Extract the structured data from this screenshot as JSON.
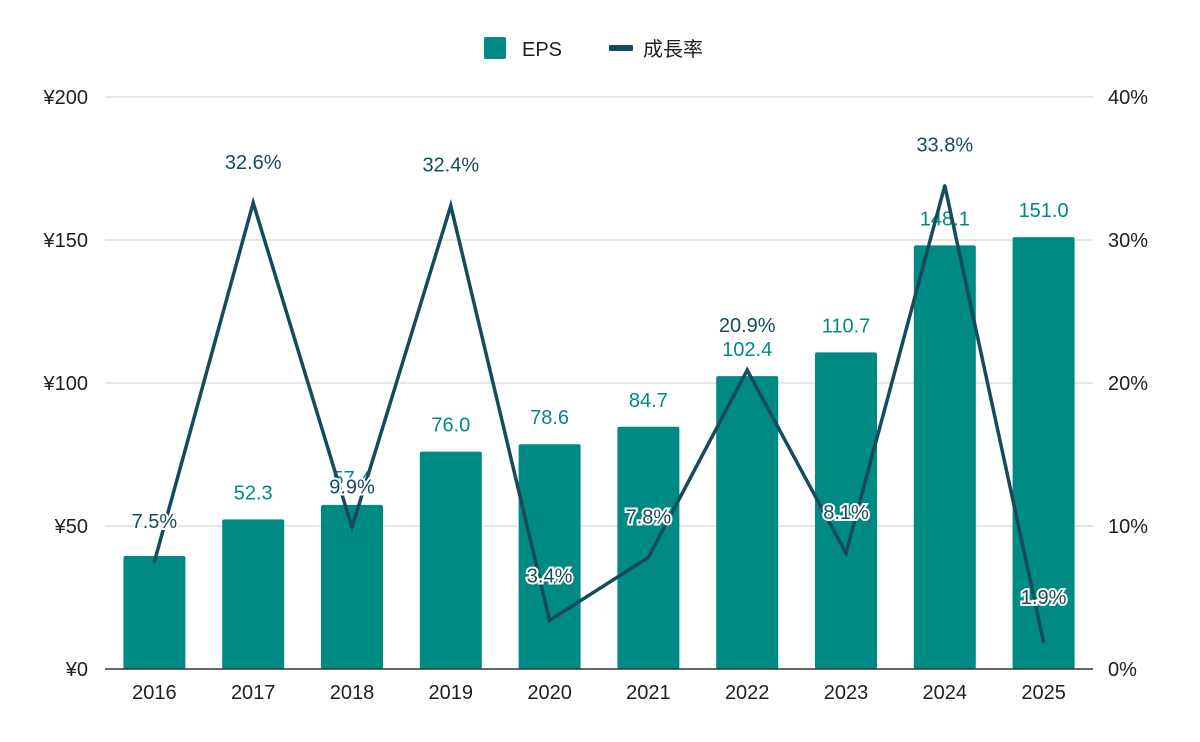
{
  "chart_data": {
    "type": "bar",
    "categories": [
      "2016",
      "2017",
      "2018",
      "2019",
      "2020",
      "2021",
      "2022",
      "2023",
      "2024",
      "2025"
    ],
    "series": [
      {
        "name": "EPS",
        "type": "bar",
        "axis": "left",
        "color": "#008a84",
        "values": [
          39.5,
          52.3,
          57.4,
          76.0,
          78.6,
          84.7,
          102.4,
          110.7,
          148.1,
          151.0
        ],
        "labels": [
          "",
          "52.3",
          "57.4",
          "76.0",
          "78.6",
          "84.7",
          "102.4",
          "110.7",
          "148.1",
          "151.0"
        ]
      },
      {
        "name": "成長率",
        "type": "line",
        "axis": "right",
        "color": "#174b5b",
        "values": [
          7.5,
          32.6,
          9.9,
          32.4,
          3.4,
          7.8,
          20.9,
          8.1,
          33.8,
          1.9
        ],
        "labels": [
          "7.5%",
          "32.6%",
          "9.9%",
          "32.4%",
          "3.4%",
          "7.8%",
          "20.9%",
          "8.1%",
          "33.8%",
          "1.9%"
        ]
      }
    ],
    "y_left": {
      "min": 0,
      "max": 200,
      "ticks": [
        "¥0",
        "¥50",
        "¥100",
        "¥150",
        "¥200"
      ],
      "values": [
        0,
        50,
        100,
        150,
        200
      ]
    },
    "y_right": {
      "min": 0,
      "max": 40,
      "ticks": [
        "0%",
        "10%",
        "20%",
        "30%",
        "40%"
      ],
      "values": [
        0,
        10,
        20,
        30,
        40
      ]
    },
    "grid": true,
    "legend": "top-center",
    "title": "",
    "xlabel": "",
    "ylabel": ""
  },
  "legend": {
    "items": [
      {
        "label": "EPS",
        "color": "#008a84",
        "marker": "square"
      },
      {
        "label": "成長率",
        "color": "#174b5b",
        "marker": "line"
      }
    ]
  }
}
